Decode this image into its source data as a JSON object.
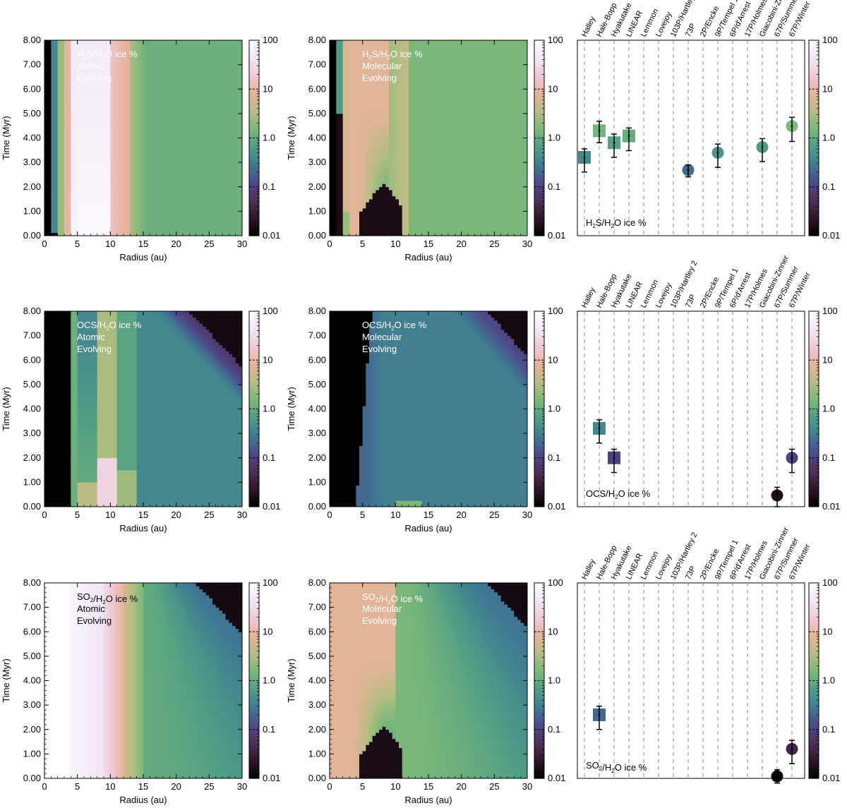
{
  "colorbar": {
    "scale": "log",
    "min": 0.01,
    "max": 100,
    "ticks": [
      {
        "value": 0.01,
        "label": "0.01"
      },
      {
        "value": 0.1,
        "label": "0.1"
      },
      {
        "value": 1,
        "label": "1.0"
      },
      {
        "value": 10,
        "label": "10"
      },
      {
        "value": 100,
        "label": "100"
      }
    ],
    "colormap": [
      "#000000",
      "#2e1628",
      "#4f2f58",
      "#4d4a8a",
      "#3f7a93",
      "#4f9d86",
      "#79b77a",
      "#b6bd83",
      "#e6b39a",
      "#f0c8d4",
      "#f1e6f6",
      "#ffffff"
    ]
  },
  "axes": {
    "radius": {
      "label": "Radius (au)",
      "min": 0,
      "max": 30,
      "ticks": [
        "0",
        "5",
        "10",
        "15",
        "20",
        "25",
        "30"
      ]
    },
    "time": {
      "label": "Time (Myr)",
      "min": 0,
      "max": 8,
      "ticks": [
        "0.00",
        "1.00",
        "2.00",
        "3.00",
        "4.00",
        "5.00",
        "6.00",
        "7.00",
        "8.00"
      ]
    }
  },
  "comets": [
    "Halley",
    "Hale-Bopp",
    "Hyakutake",
    "LINEAR",
    "Lemmon",
    "Lovejoy",
    "103P/Hartley 2",
    "73P",
    "2P/Encke",
    "9P/Tempel 1",
    "6P/d'Arrest",
    "17P/Holmes",
    "Giacobini-Zinner",
    "67P/Summer",
    "67P/Winter"
  ],
  "chart_data": [
    {
      "type": "heatmap",
      "species": "H2S",
      "title_lines": [
        "H2S/H2O ice %",
        "Atomic",
        "Evolving"
      ],
      "label_color": "white",
      "xlabel": "Radius (au)",
      "ylabel": "Time (Myr)",
      "xlim": [
        0,
        30
      ],
      "ylim": [
        0,
        8
      ],
      "zlim": [
        0.01,
        100
      ],
      "zscale": "log"
    },
    {
      "type": "heatmap",
      "species": "H2S",
      "title_lines": [
        "H2S/H2O ice %",
        "Molecular",
        "Evolving"
      ],
      "label_color": "white",
      "xlabel": "Radius (au)",
      "ylabel": "Time (Myr)",
      "xlim": [
        0,
        30
      ],
      "ylim": [
        0,
        8
      ],
      "zlim": [
        0.01,
        100
      ],
      "zscale": "log"
    },
    {
      "type": "scatter",
      "species": "H2S",
      "label": "H2S/H2O ice %",
      "ylim": [
        0.01,
        100
      ],
      "yscale": "log",
      "points": [
        {
          "comet": "Halley",
          "marker": "square",
          "value": 0.4,
          "err_low": 0.2,
          "err_high": 0.6
        },
        {
          "comet": "Hale-Bopp",
          "marker": "square",
          "value": 1.4,
          "err_low": 0.8,
          "err_high": 2.2
        },
        {
          "comet": "Hyakutake",
          "marker": "square",
          "value": 0.8,
          "err_low": 0.4,
          "err_high": 1.2
        },
        {
          "comet": "LINEAR",
          "marker": "square",
          "value": 1.1,
          "err_low": 0.55,
          "err_high": 1.6
        },
        {
          "comet": "73P",
          "marker": "circle",
          "value": 0.22,
          "err_low": 0.16,
          "err_high": 0.28
        },
        {
          "comet": "9P/Tempel 1",
          "marker": "circle",
          "value": 0.5,
          "err_low": 0.25,
          "err_high": 0.75
        },
        {
          "comet": "Giacobini-Zinner",
          "marker": "circle",
          "value": 0.65,
          "err_low": 0.33,
          "err_high": 0.97
        },
        {
          "comet": "67P/Winter",
          "marker": "circle",
          "value": 1.75,
          "err_low": 0.85,
          "err_high": 2.65
        }
      ]
    },
    {
      "type": "heatmap",
      "species": "OCS",
      "title_lines": [
        "OCS/H2O ice %",
        "Atomic",
        "Evolving"
      ],
      "label_color": "white",
      "xlabel": "Radius (au)",
      "ylabel": "Time (Myr)",
      "xlim": [
        0,
        30
      ],
      "ylim": [
        0,
        8
      ],
      "zlim": [
        0.01,
        100
      ],
      "zscale": "log"
    },
    {
      "type": "heatmap",
      "species": "OCS",
      "title_lines": [
        "OCS/H2O ice %",
        "Molecular",
        "Evolving"
      ],
      "label_color": "white",
      "xlabel": "Radius (au)",
      "ylabel": "Time (Myr)",
      "xlim": [
        0,
        30
      ],
      "ylim": [
        0,
        8
      ],
      "zlim": [
        0.01,
        100
      ],
      "zscale": "log"
    },
    {
      "type": "scatter",
      "species": "OCS",
      "label": "OCS/H2O ice %",
      "ylim": [
        0.01,
        100
      ],
      "yscale": "log",
      "points": [
        {
          "comet": "Hale-Bopp",
          "marker": "square",
          "value": 0.4,
          "err_low": 0.2,
          "err_high": 0.6
        },
        {
          "comet": "Hyakutake",
          "marker": "square",
          "value": 0.1,
          "err_low": 0.05,
          "err_high": 0.15
        },
        {
          "comet": "67P/Summer",
          "marker": "circle",
          "value": 0.017,
          "err_low": 0.01,
          "err_high": 0.025
        },
        {
          "comet": "67P/Winter",
          "marker": "circle",
          "value": 0.1,
          "err_low": 0.05,
          "err_high": 0.15
        }
      ]
    },
    {
      "type": "heatmap",
      "species": "SO2",
      "title_lines": [
        "SO2/H2O ice %",
        "Atomic",
        "Evolving"
      ],
      "label_color": "black",
      "xlabel": "Radius (au)",
      "ylabel": "Time (Myr)",
      "xlim": [
        0,
        30
      ],
      "ylim": [
        0,
        8
      ],
      "zlim": [
        0.01,
        100
      ],
      "zscale": "log"
    },
    {
      "type": "heatmap",
      "species": "SO2",
      "title_lines": [
        "SO2/H2O ice %",
        "Molecular",
        "Evolving"
      ],
      "label_color": "white",
      "xlabel": "Radius (au)",
      "ylabel": "Time (Myr)",
      "xlim": [
        0,
        30
      ],
      "ylim": [
        0,
        8
      ],
      "zlim": [
        0.01,
        100
      ],
      "zscale": "log"
    },
    {
      "type": "scatter",
      "species": "SO2",
      "label": "SO2/H2O ice %",
      "ylim": [
        0.01,
        100
      ],
      "yscale": "log",
      "points": [
        {
          "comet": "Hale-Bopp",
          "marker": "square",
          "value": 0.2,
          "err_low": 0.1,
          "err_high": 0.3
        },
        {
          "comet": "67P/Summer",
          "marker": "circle",
          "value": 0.011,
          "err_low": 0.008,
          "err_high": 0.015
        },
        {
          "comet": "67P/Winter",
          "marker": "circle",
          "value": 0.04,
          "err_low": 0.02,
          "err_high": 0.06
        }
      ]
    }
  ]
}
